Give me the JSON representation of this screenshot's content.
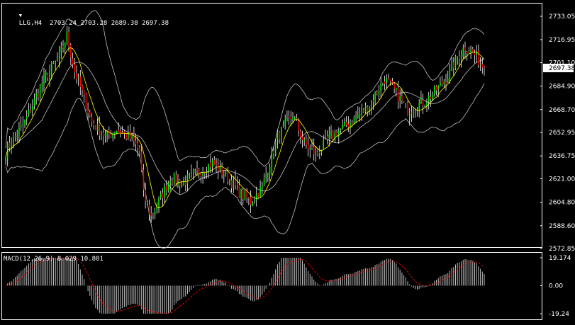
{
  "header": {
    "menu_glyph": "▼",
    "title": "LLG,H4  2703.24 2703.28 2689.38 2697.38"
  },
  "price_axis": {
    "ticks": [
      "2733.05",
      "2716.95",
      "2701.10",
      "2684.90",
      "2668.70",
      "2652.95",
      "2636.75",
      "2621.00",
      "2604.80",
      "2588.60",
      "2572.85"
    ],
    "current_price": "2697.38"
  },
  "macd_panel": {
    "label": "MACD(12,26,9) 8.029 10.801",
    "ticks": [
      "19.174",
      "0.00",
      "-19.24"
    ]
  },
  "colors": {
    "background": "#000000",
    "frame": "#ffffff",
    "bull_candle": "#00ff00",
    "bear_candle": "#ff0000",
    "wick": "#ffffff",
    "bollinger": "#c0c0c0",
    "moving_average": "#ffff00",
    "macd_histogram": "#c0c0c0",
    "macd_signal": "#ff0000",
    "price_tag": "#ffffff"
  },
  "chart_data": [
    {
      "type": "candlestick",
      "symbol": "LLG",
      "timeframe": "H4",
      "ylim": [
        2572.85,
        2733.05
      ],
      "overlays": [
        "Bollinger Bands",
        "Moving Average"
      ],
      "last_close": 2697.38,
      "approx_close_path": [
        [
          0,
          2640
        ],
        [
          10,
          2660
        ],
        [
          20,
          2690
        ],
        [
          28,
          2705
        ],
        [
          32,
          2720
        ],
        [
          36,
          2695
        ],
        [
          40,
          2680
        ],
        [
          45,
          2660
        ],
        [
          52,
          2650
        ],
        [
          58,
          2655
        ],
        [
          66,
          2648
        ],
        [
          70,
          2640
        ],
        [
          72,
          2610
        ],
        [
          76,
          2595
        ],
        [
          80,
          2605
        ],
        [
          86,
          2622
        ],
        [
          92,
          2618
        ],
        [
          100,
          2625
        ],
        [
          108,
          2632
        ],
        [
          116,
          2622
        ],
        [
          122,
          2612
        ],
        [
          128,
          2605
        ],
        [
          134,
          2615
        ],
        [
          142,
          2650
        ],
        [
          150,
          2665
        ],
        [
          156,
          2645
        ],
        [
          162,
          2638
        ],
        [
          170,
          2650
        ],
        [
          180,
          2660
        ],
        [
          190,
          2672
        ],
        [
          198,
          2690
        ],
        [
          204,
          2680
        ],
        [
          210,
          2668
        ],
        [
          216,
          2672
        ],
        [
          222,
          2678
        ],
        [
          230,
          2690
        ],
        [
          236,
          2705
        ],
        [
          240,
          2712
        ],
        [
          244,
          2708
        ],
        [
          248,
          2701
        ],
        [
          250,
          2697.38
        ]
      ]
    },
    {
      "type": "bar",
      "name": "MACD(12,26,9)",
      "values_label": "8.029 10.801",
      "ylim": [
        -19.24,
        19.174
      ],
      "macd": 8.029,
      "signal": 10.801
    }
  ]
}
